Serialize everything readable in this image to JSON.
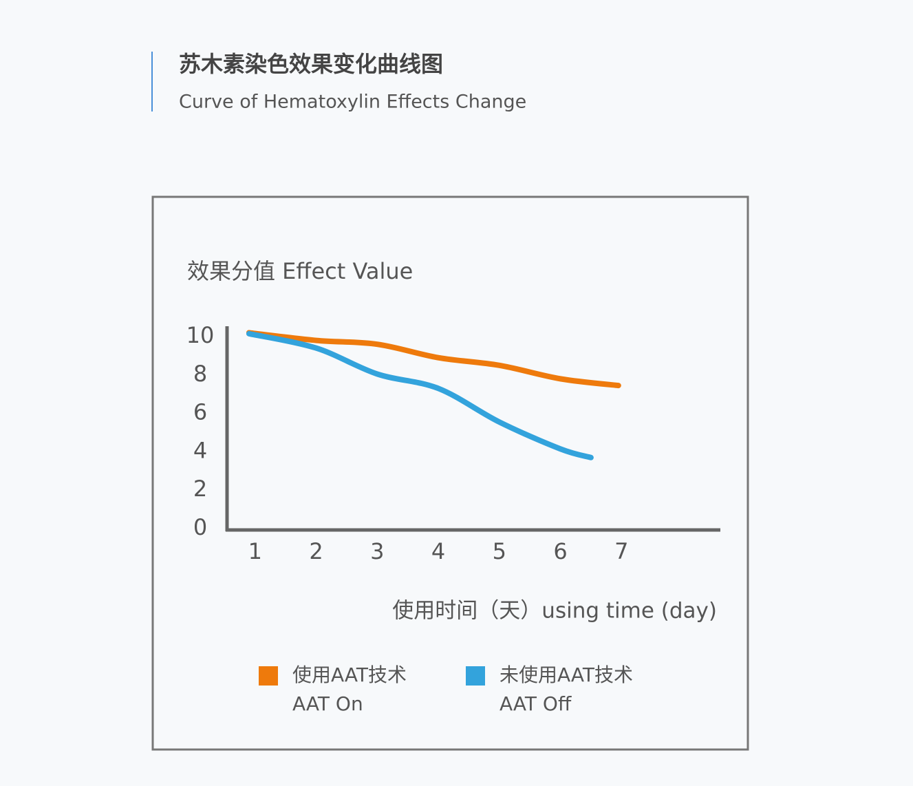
{
  "chart_data": {
    "type": "line",
    "title": "苏木素染色效果变化曲线图",
    "subtitle": "Curve of Hematoxylin Effects Change",
    "y_label": "效果分值 Effect Value",
    "x_label": "使用时间（天）using time (day)",
    "xlim": [
      0.54,
      8.62
    ],
    "xticks": [
      1,
      2,
      3,
      4,
      5,
      6,
      7
    ],
    "ylim": [
      0,
      10
    ],
    "yticks": [
      0,
      2,
      4,
      6,
      8,
      10
    ],
    "series": [
      {
        "name": "使用AAT技术",
        "name_en": "AAT On",
        "color": "#ee7a0c",
        "x": [
          0.9,
          2,
          3,
          4,
          5,
          6,
          6.95
        ],
        "values": [
          10.2,
          9.8,
          9.6,
          8.9,
          8.5,
          7.8,
          7.45
        ]
      },
      {
        "name": "未使用AAT技术",
        "name_en": "AAT Off",
        "color": "#33a3dc",
        "x": [
          0.9,
          2,
          3,
          4,
          5,
          6,
          6.5
        ],
        "values": [
          10.15,
          9.4,
          8.05,
          7.3,
          5.55,
          4.15,
          3.7
        ]
      }
    ]
  }
}
